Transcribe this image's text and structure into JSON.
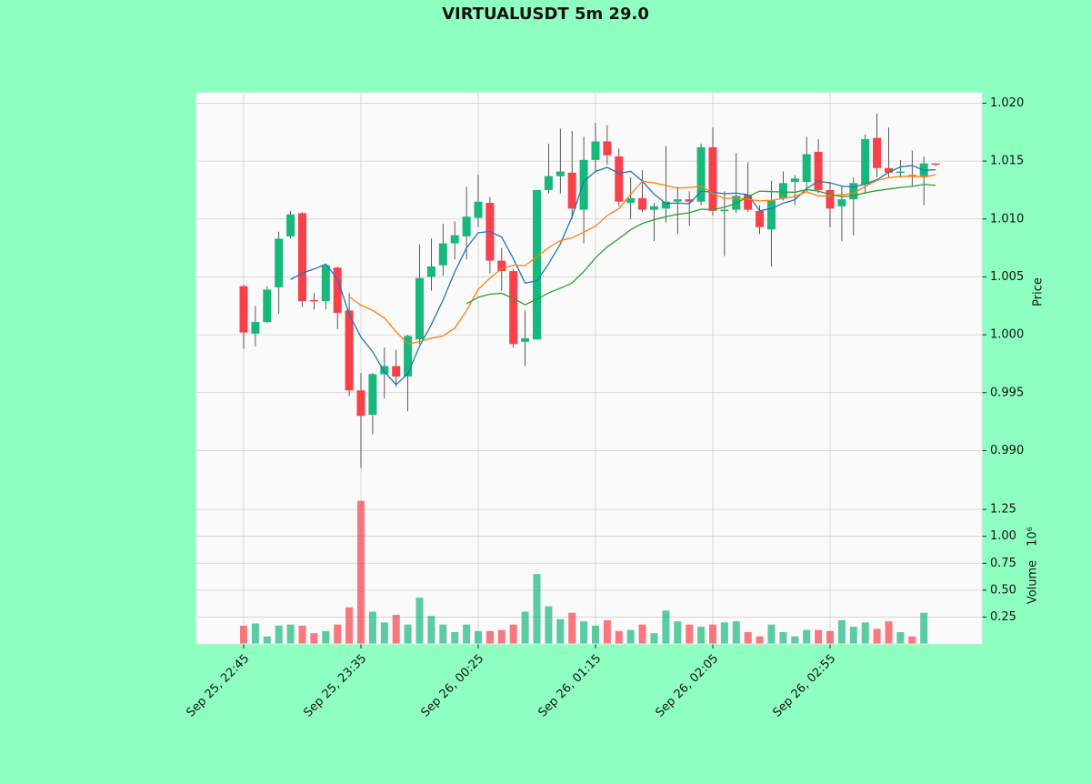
{
  "chart_data": {
    "type": "candlestick",
    "title": "VIRTUALUSDT 5m 29.0",
    "ylabel": "Price",
    "volume_label": "Volume",
    "volume_exponent": "10⁶",
    "up_color": "#16b87c",
    "down_color": "#f7404a",
    "volume_alpha": 0.7,
    "x": [
      "Sep 25, 22:45",
      "Sep 25, 22:50",
      "Sep 25, 22:55",
      "Sep 25, 23:00",
      "Sep 25, 23:05",
      "Sep 25, 23:10",
      "Sep 25, 23:15",
      "Sep 25, 23:20",
      "Sep 25, 23:25",
      "Sep 25, 23:30",
      "Sep 25, 23:35",
      "Sep 25, 23:40",
      "Sep 25, 23:45",
      "Sep 25, 23:50",
      "Sep 25, 23:55",
      "Sep 26, 00:00",
      "Sep 26, 00:05",
      "Sep 26, 00:10",
      "Sep 26, 00:15",
      "Sep 26, 00:20",
      "Sep 26, 00:25",
      "Sep 26, 00:30",
      "Sep 26, 00:35",
      "Sep 26, 00:40",
      "Sep 26, 00:45",
      "Sep 26, 00:50",
      "Sep 26, 00:55",
      "Sep 26, 01:00",
      "Sep 26, 01:05",
      "Sep 26, 01:10",
      "Sep 26, 01:15",
      "Sep 26, 01:20",
      "Sep 26, 01:25",
      "Sep 26, 01:30",
      "Sep 26, 01:35",
      "Sep 26, 01:40",
      "Sep 26, 01:45",
      "Sep 26, 01:50",
      "Sep 26, 01:55",
      "Sep 26, 02:00",
      "Sep 26, 02:05",
      "Sep 26, 02:10",
      "Sep 26, 02:15",
      "Sep 26, 02:20",
      "Sep 26, 02:25",
      "Sep 26, 02:30",
      "Sep 26, 02:35",
      "Sep 26, 02:40",
      "Sep 26, 02:45",
      "Sep 26, 02:50",
      "Sep 26, 02:55",
      "Sep 26, 03:00",
      "Sep 26, 03:05",
      "Sep 26, 03:10",
      "Sep 26, 03:15",
      "Sep 26, 03:20",
      "Sep 26, 03:25",
      "Sep 26, 03:30",
      "Sep 26, 03:35",
      "Sep 26, 03:40"
    ],
    "xticks": [
      "Sep 25, 22:45",
      "Sep 25, 23:35",
      "Sep 26, 00:25",
      "Sep 26, 01:15",
      "Sep 26, 02:05",
      "Sep 26, 02:55"
    ],
    "open": [
      1.0042,
      1.0001,
      1.0011,
      1.0041,
      1.0085,
      1.0105,
      1.003,
      1.0029,
      1.0058,
      1.0021,
      0.9952,
      0.9931,
      0.9966,
      0.9973,
      0.9964,
      0.9996,
      1.005,
      1.006,
      1.0079,
      1.0085,
      1.0101,
      1.0114,
      1.0064,
      1.0055,
      0.9994,
      0.9996,
      1.0125,
      1.0137,
      1.014,
      1.0108,
      1.0151,
      1.0167,
      1.0154,
      1.0114,
      1.0118,
      1.0108,
      1.0109,
      1.0115,
      1.0117,
      1.0115,
      1.0162,
      1.0107,
      1.0108,
      1.0121,
      1.0107,
      1.0091,
      1.0118,
      1.0132,
      1.0132,
      1.0158,
      1.0125,
      1.0111,
      1.0117,
      1.013,
      1.017,
      1.0144,
      1.014,
      1.0138,
      1.0137,
      1.0148
    ],
    "high": [
      1.0043,
      1.0025,
      1.0042,
      1.0089,
      1.0107,
      1.0106,
      1.0036,
      1.0061,
      1.0059,
      1.0036,
      0.9967,
      0.9967,
      0.9989,
      0.9987,
      1.0,
      1.0078,
      1.0083,
      1.0096,
      1.0098,
      1.0128,
      1.0138,
      1.0119,
      1.0075,
      1.0057,
      1.0021,
      1.0125,
      1.0165,
      1.0178,
      1.0176,
      1.0171,
      1.0183,
      1.0181,
      1.0161,
      1.0136,
      1.0142,
      1.0114,
      1.0163,
      1.0128,
      1.0124,
      1.0165,
      1.0179,
      1.0124,
      1.0157,
      1.0149,
      1.0112,
      1.0133,
      1.0141,
      1.0138,
      1.0171,
      1.0169,
      1.0132,
      1.0128,
      1.0136,
      1.0173,
      1.0191,
      1.0179,
      1.0151,
      1.0159,
      1.0154,
      1.0148
    ],
    "low": [
      0.9988,
      0.999,
      1.001,
      1.0018,
      1.0083,
      1.0024,
      1.0022,
      1.0022,
      1.0005,
      0.9947,
      0.9885,
      0.9914,
      0.9945,
      0.9955,
      0.9934,
      0.9992,
      1.0038,
      1.0051,
      1.0065,
      1.0065,
      1.0093,
      1.0053,
      1.0038,
      0.9989,
      0.9973,
      0.9996,
      1.0122,
      1.0122,
      1.01,
      1.0079,
      1.014,
      1.0147,
      1.0111,
      1.01,
      1.0106,
      1.0081,
      1.0097,
      1.0087,
      1.0094,
      1.0112,
      1.0103,
      1.0068,
      1.0105,
      1.0106,
      1.0087,
      1.0059,
      1.0116,
      1.0112,
      1.0124,
      1.0122,
      1.0093,
      1.0081,
      1.0086,
      1.0122,
      1.0136,
      1.0136,
      1.0136,
      1.0128,
      1.0112,
      1.0146
    ],
    "close": [
      1.0002,
      1.0011,
      1.0039,
      1.0083,
      1.0104,
      1.0029,
      1.0029,
      1.006,
      1.0019,
      0.9952,
      0.993,
      0.9966,
      0.9973,
      0.9964,
      0.9999,
      1.0049,
      1.0059,
      1.0079,
      1.0086,
      1.0102,
      1.0115,
      1.0064,
      1.0055,
      0.9992,
      0.9997,
      1.0125,
      1.0137,
      1.0141,
      1.0109,
      1.0151,
      1.0167,
      1.0155,
      1.0115,
      1.0118,
      1.0108,
      1.0111,
      1.0115,
      1.0117,
      1.0115,
      1.0162,
      1.0107,
      1.0108,
      1.012,
      1.0108,
      1.0093,
      1.0116,
      1.0131,
      1.0135,
      1.0156,
      1.0125,
      1.0109,
      1.0117,
      1.0131,
      1.0169,
      1.0144,
      1.014,
      1.0141,
      1.0137,
      1.0148,
      1.0147
    ],
    "volume": [
      0.17,
      0.19,
      0.07,
      0.17,
      0.18,
      0.17,
      0.1,
      0.12,
      0.18,
      0.34,
      1.33,
      0.3,
      0.2,
      0.27,
      0.18,
      0.43,
      0.26,
      0.18,
      0.11,
      0.18,
      0.12,
      0.12,
      0.13,
      0.18,
      0.3,
      0.65,
      0.35,
      0.23,
      0.29,
      0.21,
      0.17,
      0.22,
      0.12,
      0.13,
      0.18,
      0.1,
      0.31,
      0.21,
      0.18,
      0.16,
      0.18,
      0.2,
      0.21,
      0.11,
      0.07,
      0.18,
      0.11,
      0.07,
      0.13,
      0.13,
      0.12,
      0.22,
      0.16,
      0.2,
      0.14,
      0.21,
      0.11,
      0.07,
      0.29,
      0
    ],
    "ma": [
      {
        "color": "#1f77b4",
        "values": [
          null,
          null,
          null,
          null,
          1.00478,
          1.00532,
          1.00568,
          1.0061,
          1.00482,
          1.00178,
          0.9998,
          0.99854,
          0.9968,
          0.9957,
          0.99664,
          0.99902,
          1.00088,
          1.003,
          1.00544,
          1.0075,
          1.00882,
          1.00892,
          1.00844,
          1.00656,
          1.00446,
          1.00466,
          1.00612,
          1.00784,
          1.01018,
          1.01326,
          1.0141,
          1.01446,
          1.01394,
          1.01412,
          1.01326,
          1.01214,
          1.01134,
          1.01138,
          1.01132,
          1.0124,
          1.01232,
          1.01218,
          1.01224,
          1.0121,
          1.01072,
          1.0109,
          1.01136,
          1.01166,
          1.01262,
          1.01326,
          1.01312,
          1.01284,
          1.01276,
          1.01302,
          1.0134,
          1.01402,
          1.0145,
          1.01462,
          1.0142,
          1.01426
        ]
      },
      {
        "color": "#ff7f0e",
        "values": [
          null,
          null,
          null,
          null,
          null,
          null,
          null,
          null,
          null,
          1.00328,
          1.00256,
          1.00211,
          1.00145,
          1.00026,
          0.99921,
          0.99941,
          0.99971,
          0.9999,
          1.00057,
          1.00207,
          1.00392,
          1.0049,
          1.00572,
          1.006,
          1.00598,
          1.00674,
          1.00752,
          1.00814,
          1.00837,
          1.00886,
          1.00938,
          1.01029,
          1.01089,
          1.01215,
          1.01326,
          1.01312,
          1.0129,
          1.01266,
          1.01272,
          1.01283,
          1.01223,
          1.01176,
          1.01181,
          1.01171,
          1.01156,
          1.01161,
          1.01177,
          1.01195,
          1.01236,
          1.01199,
          1.01201,
          1.0121,
          1.01221,
          1.01282,
          1.01333,
          1.01357,
          1.01367,
          1.01369,
          1.01361,
          1.01383
        ]
      },
      {
        "color": "#2ca02c",
        "values": [
          null,
          null,
          null,
          null,
          null,
          null,
          null,
          null,
          null,
          null,
          null,
          null,
          null,
          null,
          null,
          null,
          null,
          null,
          null,
          1.002675,
          1.00324,
          1.003505,
          1.003585,
          1.00313,
          1.002595,
          1.003075,
          1.003615,
          1.00402,
          1.00447,
          1.005465,
          1.00665,
          1.007595,
          1.008305,
          1.009075,
          1.00962,
          1.00993,
          1.01021,
          1.0104,
          1.010545,
          1.010845,
          1.010805,
          1.011025,
          1.01135,
          1.01193,
          1.01241,
          1.012365,
          1.012335,
          1.012305,
          1.01254,
          1.01241,
          1.01212,
          1.01193,
          1.01201,
          1.012265,
          1.012445,
          1.01259,
          1.01272,
          1.01282,
          1.012985,
          1.01291
        ]
      }
    ],
    "ylim": [
      0.9865,
      1.0209
    ],
    "yticks": [
      {
        "value": 0.99,
        "label": "0.990"
      },
      {
        "value": 0.995,
        "label": "0.995"
      },
      {
        "value": 1.0,
        "label": "1.000"
      },
      {
        "value": 1.005,
        "label": "1.005"
      },
      {
        "value": 1.01,
        "label": "1.010"
      },
      {
        "value": 1.015,
        "label": "1.015"
      },
      {
        "value": 1.02,
        "label": "1.020"
      }
    ],
    "vlim": [
      0,
      1.42
    ],
    "vticks": [
      0.25,
      {
        "value": 0.5,
        "label": "0.50"
      },
      0.75,
      {
        "value": 1.0,
        "label": "1.00"
      },
      1.25
    ],
    "grid": true,
    "background": "#8fffc1"
  }
}
